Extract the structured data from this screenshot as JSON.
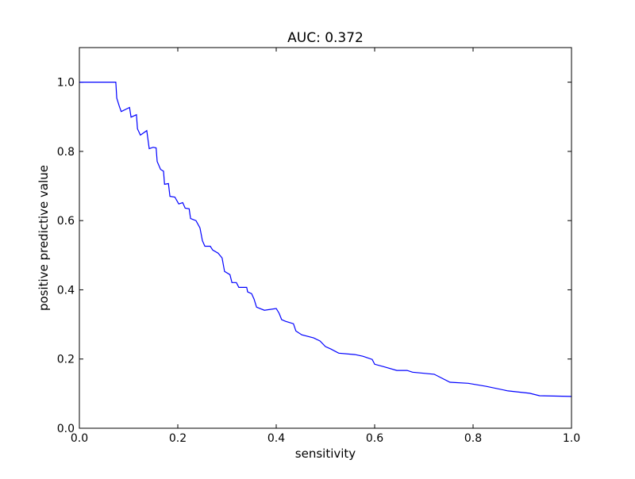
{
  "chart_data": {
    "type": "line",
    "title": "AUC: 0.372",
    "xlabel": "sensitivity",
    "ylabel": "positive predictive value",
    "xlim": [
      0,
      1
    ],
    "ylim": [
      0,
      1.1
    ],
    "grid": false,
    "line_color": "#0000ff",
    "x_ticks": [
      0.0,
      0.2,
      0.4,
      0.6,
      0.8,
      1.0
    ],
    "x_tick_labels": [
      "0.0",
      "0.2",
      "0.4",
      "0.6",
      "0.8",
      "1.0"
    ],
    "y_ticks": [
      0.0,
      0.2,
      0.4,
      0.6,
      0.8,
      1.0
    ],
    "y_tick_labels": [
      "0.0",
      "0.2",
      "0.4",
      "0.6",
      "0.8",
      "1.0"
    ],
    "x": [
      0,
      0.074,
      0.076,
      0.081,
      0.085,
      0.102,
      0.105,
      0.116,
      0.118,
      0.124,
      0.137,
      0.142,
      0.15,
      0.156,
      0.158,
      0.165,
      0.171,
      0.173,
      0.181,
      0.184,
      0.194,
      0.202,
      0.21,
      0.215,
      0.223,
      0.226,
      0.237,
      0.245,
      0.25,
      0.255,
      0.266,
      0.271,
      0.282,
      0.29,
      0.295,
      0.306,
      0.31,
      0.319,
      0.324,
      0.34,
      0.342,
      0.35,
      0.355,
      0.36,
      0.376,
      0.4,
      0.406,
      0.411,
      0.419,
      0.435,
      0.44,
      0.452,
      0.476,
      0.489,
      0.5,
      0.511,
      0.527,
      0.56,
      0.576,
      0.595,
      0.6,
      0.618,
      0.645,
      0.666,
      0.677,
      0.721,
      0.753,
      0.79,
      0.827,
      0.871,
      0.915,
      0.935,
      1.0
    ],
    "y": [
      1.0,
      1.0,
      0.954,
      0.931,
      0.915,
      0.927,
      0.899,
      0.906,
      0.865,
      0.847,
      0.86,
      0.808,
      0.812,
      0.81,
      0.771,
      0.748,
      0.743,
      0.705,
      0.707,
      0.67,
      0.668,
      0.648,
      0.652,
      0.636,
      0.634,
      0.606,
      0.6,
      0.579,
      0.542,
      0.526,
      0.526,
      0.515,
      0.506,
      0.492,
      0.453,
      0.444,
      0.421,
      0.421,
      0.407,
      0.407,
      0.394,
      0.389,
      0.373,
      0.35,
      0.341,
      0.346,
      0.332,
      0.314,
      0.309,
      0.302,
      0.281,
      0.27,
      0.261,
      0.252,
      0.236,
      0.229,
      0.217,
      0.213,
      0.208,
      0.199,
      0.185,
      0.178,
      0.167,
      0.167,
      0.162,
      0.156,
      0.133,
      0.13,
      0.121,
      0.108,
      0.101,
      0.094,
      0.092
    ]
  }
}
